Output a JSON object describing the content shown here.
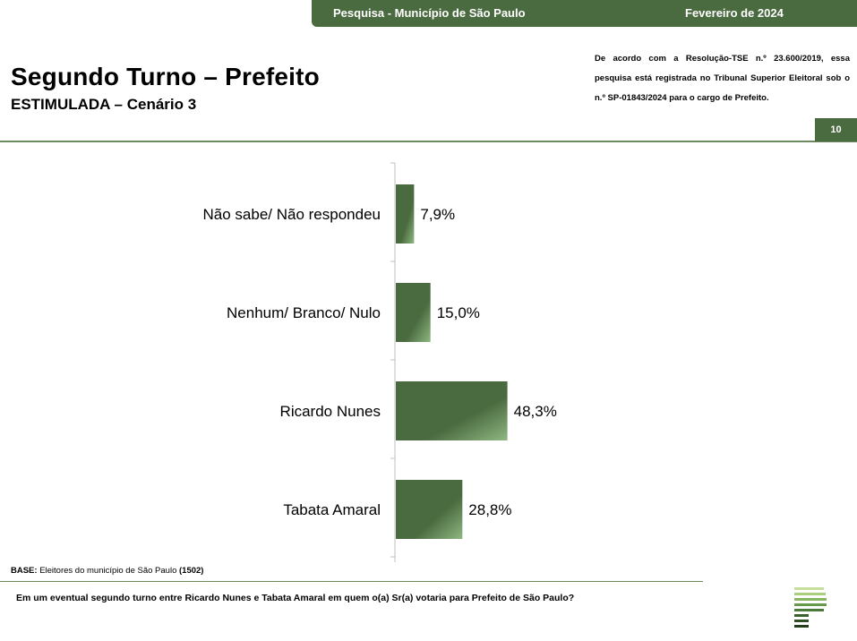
{
  "header": {
    "survey": "Pesquisa - Município de São Paulo",
    "date": "Fevereiro de 2024",
    "page_number": "10"
  },
  "title": "Segundo Turno – Prefeito",
  "subtitle": "ESTIMULADA – Cenário 3",
  "legal_note": "De acordo com a Resolução-TSE n.º 23.600/2019, essa pesquisa está registrada no Tribunal Superior Eleitoral sob o n.º SP-01843/2024 para o cargo de Prefeito.",
  "footer": {
    "base_label": "BASE:",
    "base_text": "Eleitores do município de São Paulo",
    "base_count": "(1502)",
    "question": "Em um eventual segundo turno entre Ricardo Nunes e Tabata Amaral em quem o(a) Sr(a) votaria para Prefeito de São Paulo?"
  },
  "colors": {
    "brand": "#4a6a3f",
    "bar_dark": "#4a6a3f",
    "bar_light": "#8fb881",
    "rule": "#6d8a5e"
  },
  "chart_data": {
    "type": "bar",
    "orientation": "horizontal",
    "categories": [
      "Não sabe/ Não respondeu",
      "Nenhum/ Branco/ Nulo",
      "Ricardo Nunes",
      "Tabata Amaral"
    ],
    "values": [
      7.9,
      15.0,
      48.3,
      28.8
    ],
    "value_labels": [
      "7,9%",
      "15,0%",
      "48,3%",
      "28,8%"
    ],
    "unit": "%",
    "xlim": [
      0,
      100
    ],
    "grid": false,
    "legend": "none"
  }
}
